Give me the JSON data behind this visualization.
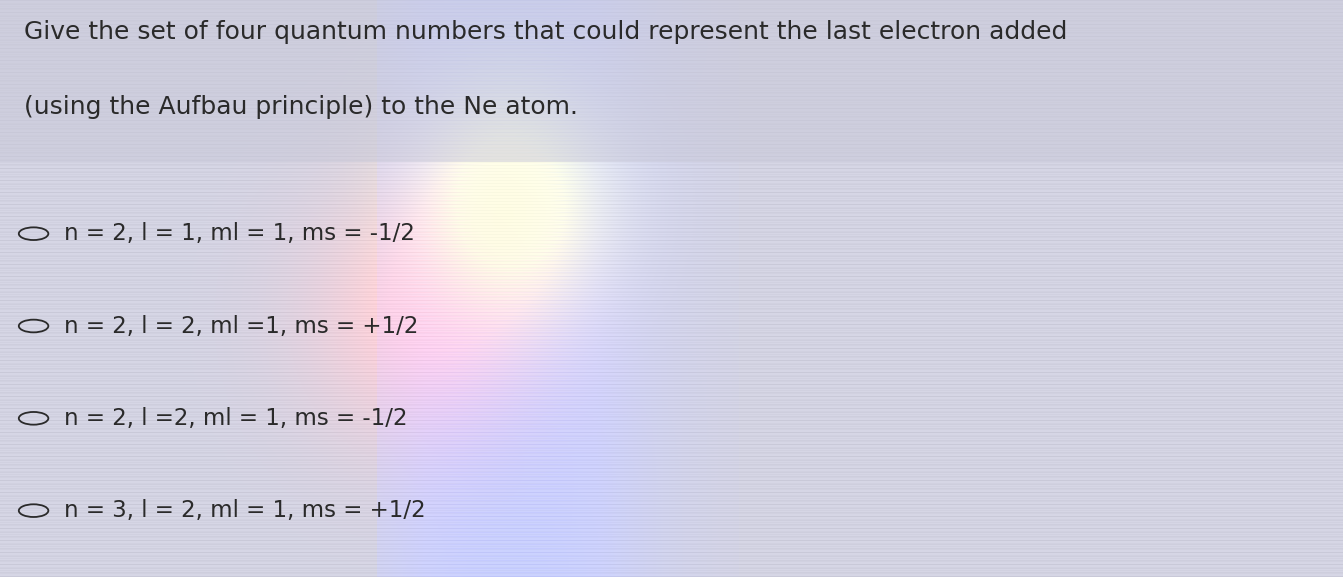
{
  "question_line1": "Give the set of four quantum numbers that could represent the last electron added",
  "question_line2": "(using the Aufbau principle) to the Ne atom.",
  "options": [
    "n = 2, l = 1, ml = 1, ms = -1/2",
    "n = 2, l = 2, ml =1, ms = +1/2",
    "n = 2, l =2, ml = 1, ms = -1/2",
    "n = 3, l = 2, ml = 1, ms = +1/2"
  ],
  "bg_color": "#d8d8e8",
  "text_color": "#2a2a2a",
  "question_fontsize": 18,
  "option_fontsize": 16.5,
  "fig_width": 13.43,
  "fig_height": 5.77,
  "dpi": 100
}
